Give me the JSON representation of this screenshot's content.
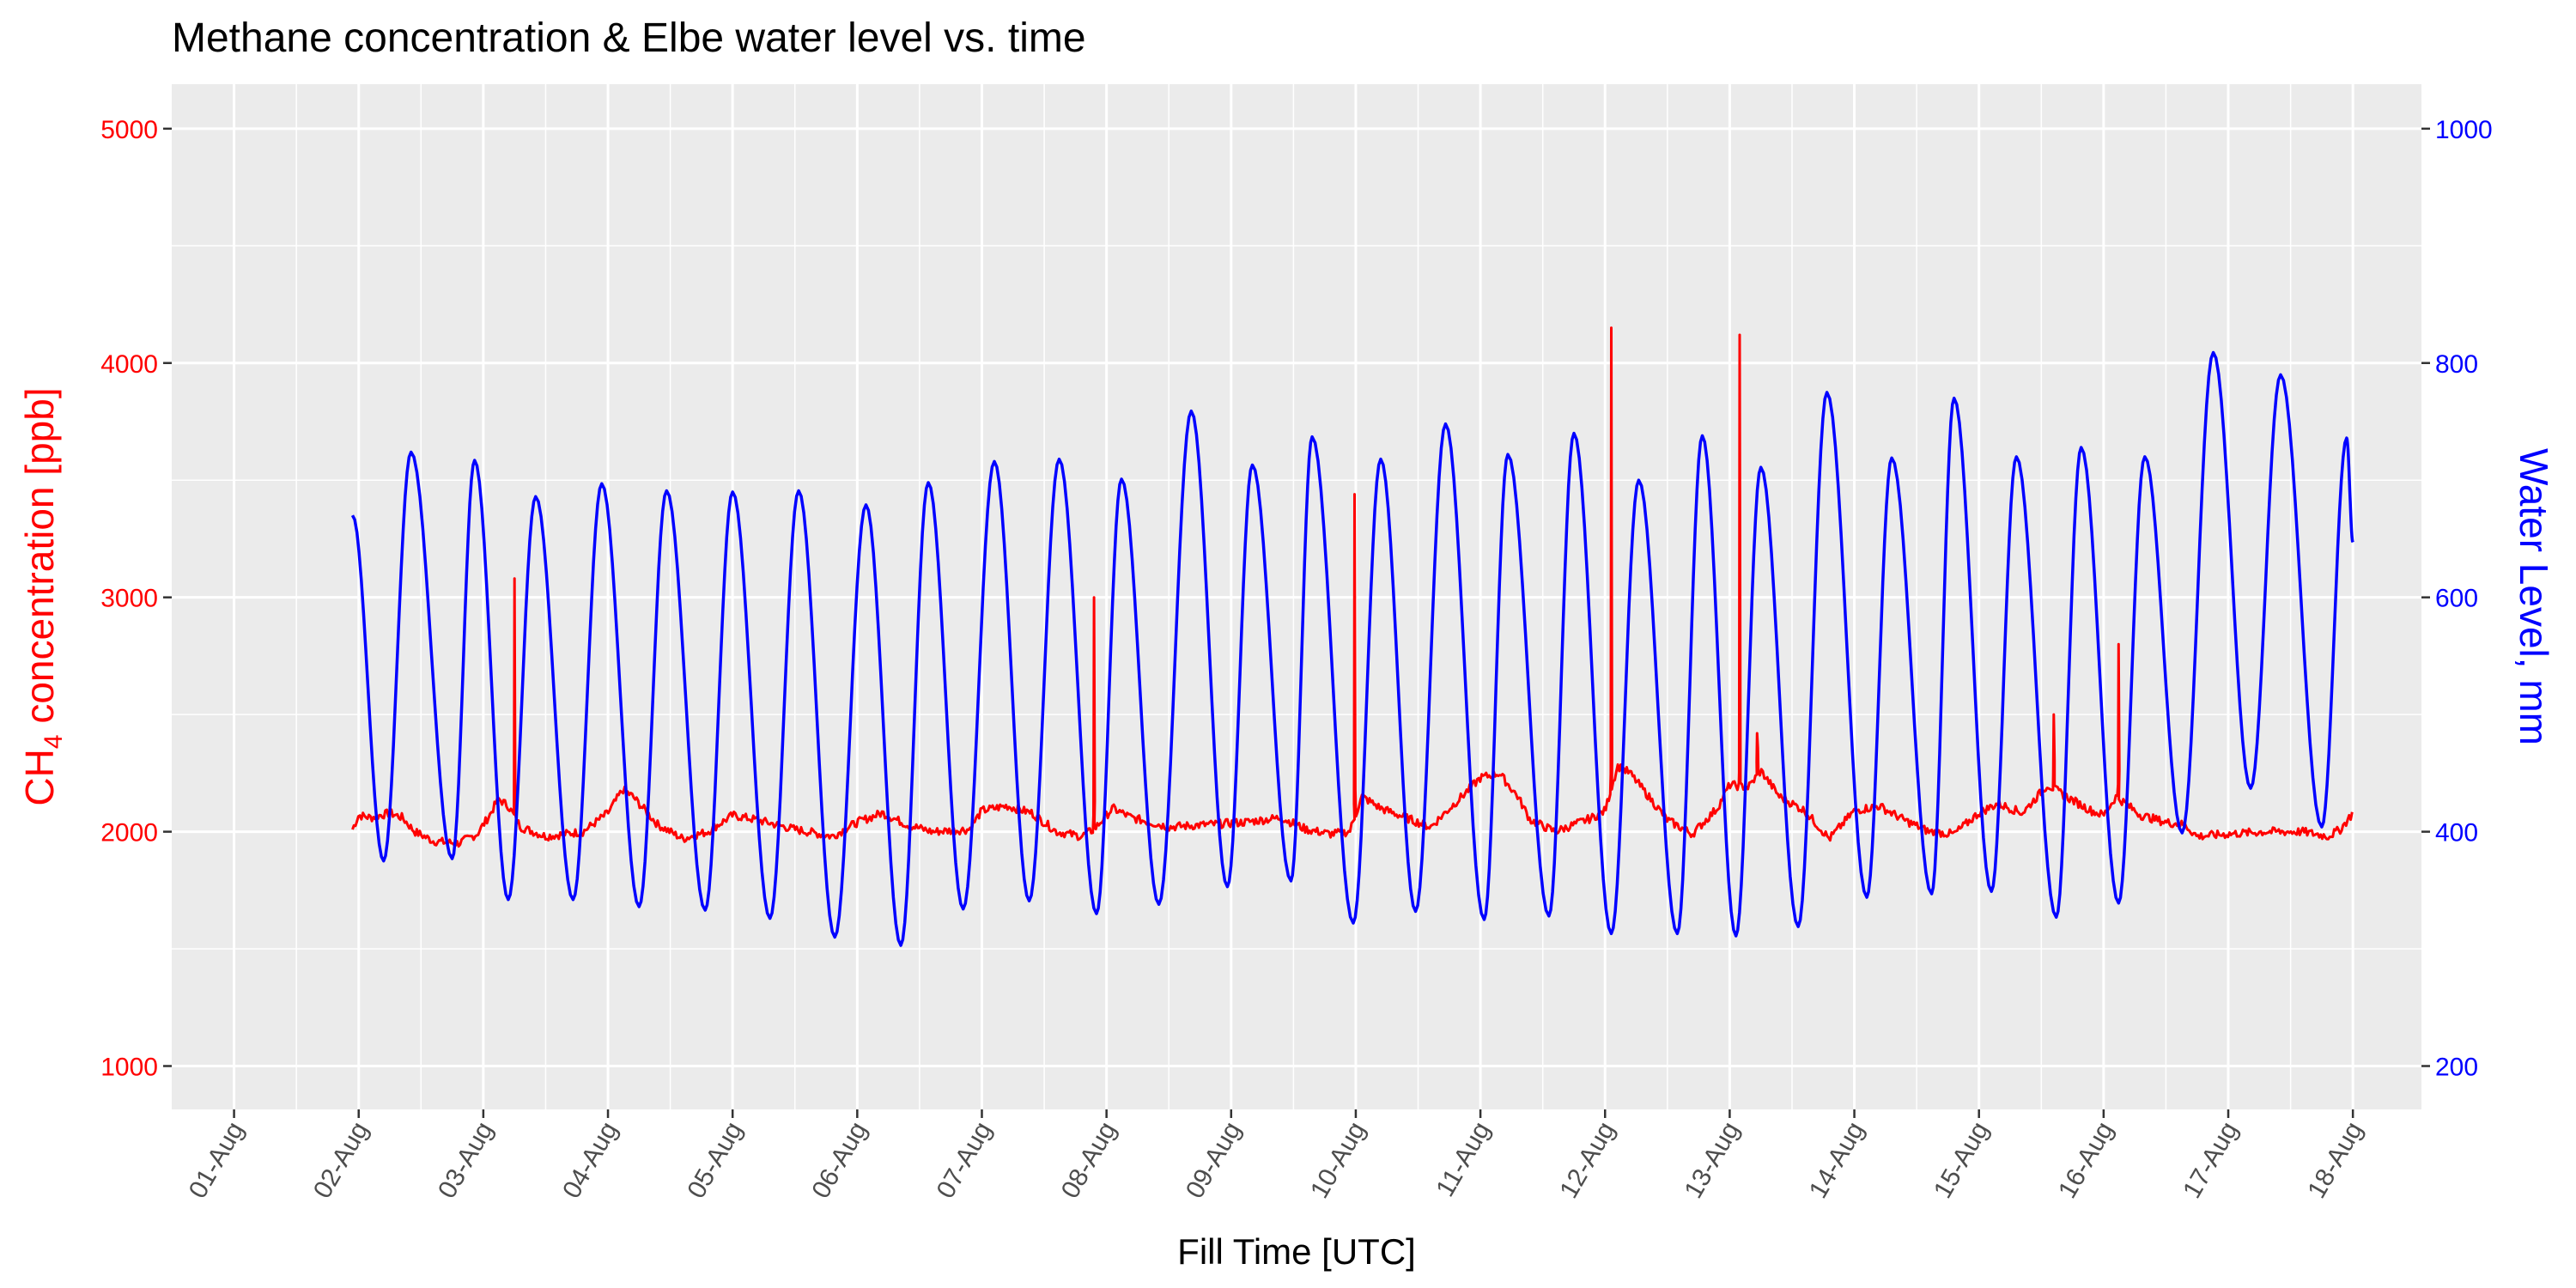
{
  "chart_data": {
    "type": "line",
    "title": "Methane concentration & Elbe water level vs. time",
    "xlabel": "Fill Time [UTC]",
    "ylabel_left": {
      "main": "CH",
      "subscript": "4",
      "rest": " concentration [ppb]"
    },
    "ylabel_right": "Water Level, mm",
    "x_tick_labels": [
      "01-Aug",
      "02-Aug",
      "03-Aug",
      "04-Aug",
      "05-Aug",
      "06-Aug",
      "07-Aug",
      "08-Aug",
      "09-Aug",
      "10-Aug",
      "11-Aug",
      "12-Aug",
      "13-Aug",
      "14-Aug",
      "15-Aug",
      "16-Aug",
      "17-Aug",
      "18-Aug"
    ],
    "x_tick_days": [
      1,
      2,
      3,
      4,
      5,
      6,
      7,
      8,
      9,
      10,
      11,
      12,
      13,
      14,
      15,
      16,
      17,
      18
    ],
    "xlim_days": [
      0.5,
      18.55
    ],
    "y_left_ticks": [
      "1000",
      "2000",
      "3000",
      "4000",
      "5000"
    ],
    "y_left_tick_values": [
      1000,
      2000,
      3000,
      4000,
      5000
    ],
    "ylim_left": [
      815,
      5190
    ],
    "y_right_ticks": [
      "200",
      "400",
      "600",
      "800",
      "1000"
    ],
    "y_right_tick_values": [
      200,
      400,
      600,
      800,
      1000
    ],
    "ylim_right": [
      163,
      1038
    ],
    "grid": true,
    "colors": {
      "panel_background": "#ebebeb",
      "grid": "#ffffff",
      "methane": "#ff0000",
      "water_level": "#0000ff",
      "x_tick_text": "#4d4d4d",
      "tick_mark": "#333333"
    },
    "series": [
      {
        "axis": "left",
        "color": "#ff0000",
        "baseline_points": [
          [
            1.95,
            2010
          ],
          [
            2.0,
            2070
          ],
          [
            2.1,
            2060
          ],
          [
            2.25,
            2080
          ],
          [
            2.35,
            2060
          ],
          [
            2.45,
            2000
          ],
          [
            2.6,
            1960
          ],
          [
            2.8,
            1950
          ],
          [
            2.95,
            1990
          ],
          [
            3.05,
            2070
          ],
          [
            3.12,
            2140
          ],
          [
            3.2,
            2110
          ],
          [
            3.3,
            2020
          ],
          [
            3.5,
            1980
          ],
          [
            3.8,
            2000
          ],
          [
            4.0,
            2080
          ],
          [
            4.12,
            2180
          ],
          [
            4.2,
            2150
          ],
          [
            4.4,
            2030
          ],
          [
            4.6,
            1970
          ],
          [
            4.8,
            2000
          ],
          [
            5.0,
            2070
          ],
          [
            5.2,
            2050
          ],
          [
            5.5,
            2010
          ],
          [
            5.8,
            1980
          ],
          [
            6.0,
            2040
          ],
          [
            6.2,
            2080
          ],
          [
            6.4,
            2030
          ],
          [
            6.6,
            2000
          ],
          [
            6.9,
            2010
          ],
          [
            7.0,
            2090
          ],
          [
            7.2,
            2110
          ],
          [
            7.4,
            2080
          ],
          [
            7.6,
            2000
          ],
          [
            7.8,
            1980
          ],
          [
            7.9,
            2010
          ],
          [
            8.05,
            2100
          ],
          [
            8.2,
            2060
          ],
          [
            8.5,
            2020
          ],
          [
            8.8,
            2030
          ],
          [
            9.1,
            2040
          ],
          [
            9.4,
            2060
          ],
          [
            9.6,
            2010
          ],
          [
            9.8,
            1990
          ],
          [
            9.95,
            2000
          ],
          [
            10.05,
            2150
          ],
          [
            10.2,
            2100
          ],
          [
            10.4,
            2060
          ],
          [
            10.6,
            2020
          ],
          [
            10.85,
            2150
          ],
          [
            11.0,
            2230
          ],
          [
            11.15,
            2250
          ],
          [
            11.3,
            2150
          ],
          [
            11.4,
            2050
          ],
          [
            11.6,
            2000
          ],
          [
            11.9,
            2060
          ],
          [
            12.0,
            2090
          ],
          [
            12.1,
            2280
          ],
          [
            12.2,
            2250
          ],
          [
            12.35,
            2150
          ],
          [
            12.5,
            2050
          ],
          [
            12.7,
            1990
          ],
          [
            12.9,
            2100
          ],
          [
            13.0,
            2200
          ],
          [
            13.15,
            2190
          ],
          [
            13.25,
            2260
          ],
          [
            13.4,
            2150
          ],
          [
            13.6,
            2090
          ],
          [
            13.8,
            1970
          ],
          [
            14.0,
            2090
          ],
          [
            14.2,
            2110
          ],
          [
            14.4,
            2050
          ],
          [
            14.6,
            2000
          ],
          [
            14.8,
            1990
          ],
          [
            15.0,
            2080
          ],
          [
            15.15,
            2120
          ],
          [
            15.35,
            2080
          ],
          [
            15.55,
            2200
          ],
          [
            15.7,
            2150
          ],
          [
            15.9,
            2090
          ],
          [
            16.0,
            2070
          ],
          [
            16.1,
            2150
          ],
          [
            16.3,
            2070
          ],
          [
            16.5,
            2040
          ],
          [
            16.65,
            2030
          ],
          [
            16.75,
            1980
          ],
          [
            17.0,
            1990
          ],
          [
            17.3,
            2000
          ],
          [
            17.6,
            2000
          ],
          [
            17.8,
            1980
          ],
          [
            17.9,
            2010
          ],
          [
            18.0,
            2080
          ]
        ],
        "spikes": [
          [
            3.25,
            3080
          ],
          [
            7.9,
            3000
          ],
          [
            9.99,
            3440
          ],
          [
            12.05,
            4150
          ],
          [
            13.08,
            4120
          ],
          [
            13.22,
            2420
          ],
          [
            15.6,
            2500
          ],
          [
            16.12,
            2800
          ]
        ]
      },
      {
        "axis": "right",
        "color": "#0000ff",
        "extrema": [
          [
            1.95,
            670
          ],
          [
            2.2,
            375
          ],
          [
            2.42,
            724
          ],
          [
            2.75,
            377
          ],
          [
            2.93,
            717
          ],
          [
            3.2,
            342
          ],
          [
            3.42,
            686
          ],
          [
            3.72,
            342
          ],
          [
            3.95,
            697
          ],
          [
            4.25,
            336
          ],
          [
            4.47,
            691
          ],
          [
            4.78,
            333
          ],
          [
            5.0,
            690
          ],
          [
            5.3,
            326
          ],
          [
            5.53,
            691
          ],
          [
            5.82,
            310
          ],
          [
            6.07,
            679
          ],
          [
            6.35,
            303
          ],
          [
            6.57,
            698
          ],
          [
            6.85,
            334
          ],
          [
            7.1,
            716
          ],
          [
            7.38,
            341
          ],
          [
            7.62,
            718
          ],
          [
            7.92,
            330
          ],
          [
            8.12,
            701
          ],
          [
            8.42,
            338
          ],
          [
            8.68,
            759
          ],
          [
            8.97,
            353
          ],
          [
            9.17,
            713
          ],
          [
            9.48,
            358
          ],
          [
            9.65,
            737
          ],
          [
            9.98,
            322
          ],
          [
            10.2,
            718
          ],
          [
            10.48,
            332
          ],
          [
            10.72,
            748
          ],
          [
            11.03,
            325
          ],
          [
            11.22,
            722
          ],
          [
            11.55,
            328
          ],
          [
            11.75,
            740
          ],
          [
            12.05,
            313
          ],
          [
            12.27,
            700
          ],
          [
            12.58,
            313
          ],
          [
            12.78,
            738
          ],
          [
            13.05,
            311
          ],
          [
            13.25,
            711
          ],
          [
            13.55,
            319
          ],
          [
            13.78,
            775
          ],
          [
            14.1,
            344
          ],
          [
            14.3,
            719
          ],
          [
            14.62,
            347
          ],
          [
            14.8,
            770
          ],
          [
            15.1,
            349
          ],
          [
            15.3,
            720
          ],
          [
            15.62,
            327
          ],
          [
            15.82,
            728
          ],
          [
            16.12,
            339
          ],
          [
            16.33,
            720
          ],
          [
            16.63,
            399
          ],
          [
            16.88,
            809
          ],
          [
            17.18,
            437
          ],
          [
            17.42,
            790
          ],
          [
            17.75,
            404
          ],
          [
            17.95,
            736
          ],
          [
            18.0,
            647
          ]
        ]
      }
    ]
  }
}
